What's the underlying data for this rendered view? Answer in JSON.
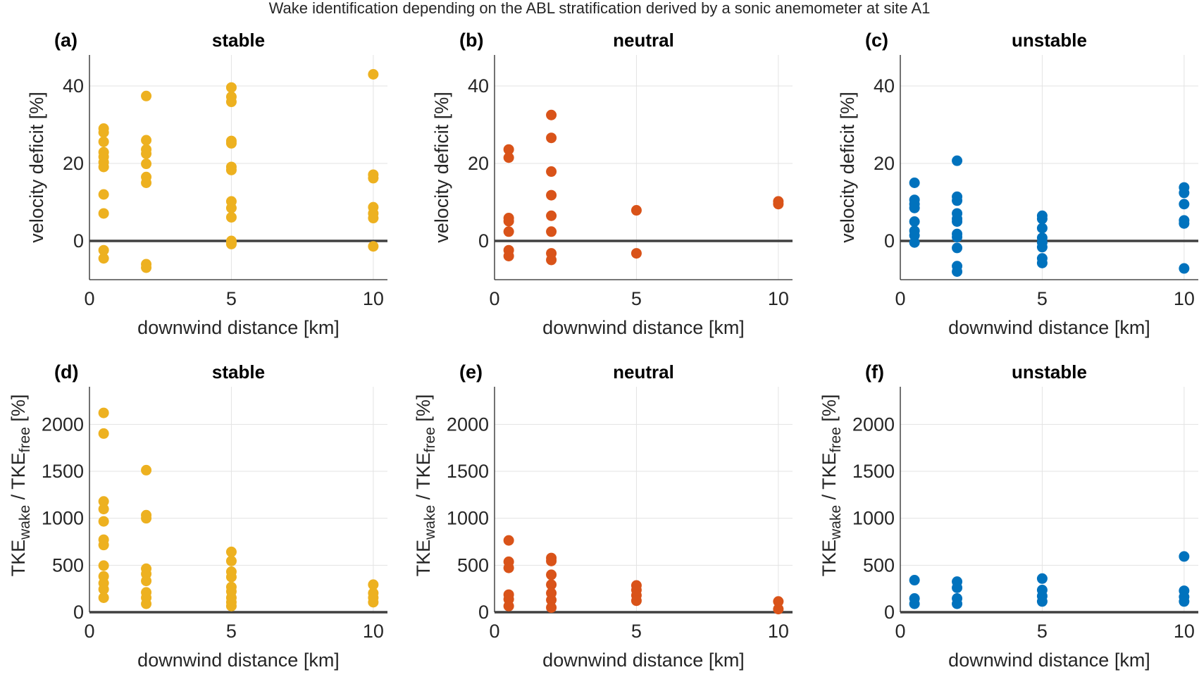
{
  "chart_data": {
    "type": "scatter",
    "title": "Wake identification depending on the ABL stratification derived by a sonic anemometer at site A1",
    "colors": {
      "stable": "#EDB120",
      "neutral": "#D95319",
      "unstable": "#0072BD"
    },
    "panels": [
      {
        "letter": "(a)",
        "subtitle": "stable",
        "color": "#EDB120",
        "xlabel": "downwind distance [km]",
        "ylabel": "velocity deficit [%]",
        "ylabel_type": "vd",
        "xlim": [
          0,
          10.5
        ],
        "ylim": [
          -10,
          48
        ],
        "xticks": [
          "0",
          "5",
          "10"
        ],
        "yticks": [
          "0",
          "20",
          "40"
        ],
        "grid": true,
        "points": [
          [
            0.5,
            29
          ],
          [
            0.5,
            28
          ],
          [
            0.5,
            25.6
          ],
          [
            0.5,
            22.9
          ],
          [
            0.5,
            21.7
          ],
          [
            0.5,
            20.3
          ],
          [
            0.5,
            19.1
          ],
          [
            0.5,
            12
          ],
          [
            0.5,
            7.1
          ],
          [
            0.5,
            -2.4
          ],
          [
            0.5,
            -4.5
          ],
          [
            2,
            37.4
          ],
          [
            2,
            26
          ],
          [
            2,
            23.6
          ],
          [
            2,
            22.5
          ],
          [
            2,
            19.9
          ],
          [
            2,
            16.5
          ],
          [
            2,
            15
          ],
          [
            2,
            -6
          ],
          [
            2,
            -6.9
          ],
          [
            5,
            39.6
          ],
          [
            5,
            37.2
          ],
          [
            5,
            35.9
          ],
          [
            5,
            25.8
          ],
          [
            5,
            25.2
          ],
          [
            5,
            19.1
          ],
          [
            5,
            18.3
          ],
          [
            5,
            10.2
          ],
          [
            5,
            8.5
          ],
          [
            5,
            6.1
          ],
          [
            5,
            0
          ],
          [
            5,
            -0.4
          ],
          [
            5,
            -0.8
          ],
          [
            10,
            43
          ],
          [
            10,
            17.1
          ],
          [
            10,
            16.2
          ],
          [
            10,
            8.7
          ],
          [
            10,
            7.1
          ],
          [
            10,
            5.9
          ],
          [
            10,
            -1.4
          ]
        ]
      },
      {
        "letter": "(b)",
        "subtitle": "neutral",
        "color": "#D95319",
        "xlabel": "downwind distance [km]",
        "ylabel": "velocity deficit [%]",
        "ylabel_type": "vd",
        "xlim": [
          0,
          10.5
        ],
        "ylim": [
          -10,
          48
        ],
        "xticks": [
          "0",
          "5",
          "10"
        ],
        "yticks": [
          "0",
          "20",
          "40"
        ],
        "grid": true,
        "points": [
          [
            0.5,
            23.6
          ],
          [
            0.5,
            21.5
          ],
          [
            0.5,
            5.9
          ],
          [
            0.5,
            5.1
          ],
          [
            0.5,
            2.4
          ],
          [
            0.5,
            -2.4
          ],
          [
            0.5,
            -3.9
          ],
          [
            2,
            32.5
          ],
          [
            2,
            26.6
          ],
          [
            2,
            17.9
          ],
          [
            2,
            11.8
          ],
          [
            2,
            6.5
          ],
          [
            2,
            2.4
          ],
          [
            2,
            -3.2
          ],
          [
            2,
            -4.9
          ],
          [
            5,
            7.9
          ],
          [
            5,
            -3.2
          ],
          [
            10,
            10.2
          ],
          [
            10,
            9.5
          ]
        ]
      },
      {
        "letter": "(c)",
        "subtitle": "unstable",
        "color": "#0072BD",
        "xlabel": "downwind distance [km]",
        "ylabel": "velocity deficit [%]",
        "ylabel_type": "vd",
        "xlim": [
          0,
          10.5
        ],
        "ylim": [
          -10,
          48
        ],
        "xticks": [
          "0",
          "5",
          "10"
        ],
        "yticks": [
          "0",
          "20",
          "40"
        ],
        "grid": true,
        "points": [
          [
            0.5,
            15
          ],
          [
            0.5,
            10.6
          ],
          [
            0.5,
            9.5
          ],
          [
            0.5,
            8.5
          ],
          [
            0.5,
            5
          ],
          [
            0.5,
            2.6
          ],
          [
            0.5,
            1.4
          ],
          [
            0.5,
            -0.4
          ],
          [
            2,
            20.7
          ],
          [
            2,
            11.4
          ],
          [
            2,
            10.4
          ],
          [
            2,
            7.1
          ],
          [
            2,
            5.7
          ],
          [
            2,
            5
          ],
          [
            2,
            1.8
          ],
          [
            2,
            1
          ],
          [
            2,
            -1.8
          ],
          [
            2,
            -6.5
          ],
          [
            2,
            -7.9
          ],
          [
            5,
            6.5
          ],
          [
            5,
            5.7
          ],
          [
            5,
            3.3
          ],
          [
            5,
            0.8
          ],
          [
            5,
            -0.4
          ],
          [
            5,
            -1.6
          ],
          [
            5,
            -4.5
          ],
          [
            5,
            -5.7
          ],
          [
            10,
            13.8
          ],
          [
            10,
            12.4
          ],
          [
            10,
            9.5
          ],
          [
            10,
            5.3
          ],
          [
            10,
            4.5
          ],
          [
            10,
            -7.1
          ]
        ]
      },
      {
        "letter": "(d)",
        "subtitle": "stable",
        "color": "#EDB120",
        "xlabel": "downwind distance [km]",
        "ylabel": "TKE_wake / TKE_free [%]",
        "ylabel_type": "tke",
        "xlim": [
          0,
          10.5
        ],
        "ylim": [
          0,
          2400
        ],
        "xticks": [
          "0",
          "5",
          "10"
        ],
        "yticks": [
          "0",
          "500",
          "1000",
          "1500",
          "2000"
        ],
        "grid": true,
        "points": [
          [
            0.5,
            2122
          ],
          [
            0.5,
            1902
          ],
          [
            0.5,
            1179
          ],
          [
            0.5,
            1098
          ],
          [
            0.5,
            967
          ],
          [
            0.5,
            772
          ],
          [
            0.5,
            715
          ],
          [
            0.5,
            496
          ],
          [
            0.5,
            382
          ],
          [
            0.5,
            309
          ],
          [
            0.5,
            244
          ],
          [
            0.5,
            154
          ],
          [
            2,
            1512
          ],
          [
            2,
            1033
          ],
          [
            2,
            1000
          ],
          [
            2,
            463
          ],
          [
            2,
            407
          ],
          [
            2,
            333
          ],
          [
            2,
            211
          ],
          [
            2,
            154
          ],
          [
            2,
            89
          ],
          [
            5,
            642
          ],
          [
            5,
            545
          ],
          [
            5,
            431
          ],
          [
            5,
            374
          ],
          [
            5,
            268
          ],
          [
            5,
            220
          ],
          [
            5,
            154
          ],
          [
            5,
            106
          ],
          [
            5,
            65
          ],
          [
            10,
            293
          ],
          [
            10,
            203
          ],
          [
            10,
            154
          ],
          [
            10,
            106
          ]
        ]
      },
      {
        "letter": "(e)",
        "subtitle": "neutral",
        "color": "#D95319",
        "xlabel": "downwind distance [km]",
        "ylabel": "TKE_wake / TKE_free [%]",
        "ylabel_type": "tke",
        "xlim": [
          0,
          10.5
        ],
        "ylim": [
          0,
          2400
        ],
        "xticks": [
          "0",
          "5",
          "10"
        ],
        "yticks": [
          "0",
          "500",
          "1000",
          "1500",
          "2000"
        ],
        "grid": true,
        "points": [
          [
            0.5,
            764
          ],
          [
            0.5,
            537
          ],
          [
            0.5,
            472
          ],
          [
            0.5,
            187
          ],
          [
            0.5,
            138
          ],
          [
            0.5,
            65
          ],
          [
            2,
            577
          ],
          [
            2,
            545
          ],
          [
            2,
            398
          ],
          [
            2,
            293
          ],
          [
            2,
            203
          ],
          [
            2,
            130
          ],
          [
            2,
            49
          ],
          [
            5,
            285
          ],
          [
            5,
            236
          ],
          [
            5,
            179
          ],
          [
            5,
            122
          ],
          [
            10,
            114
          ],
          [
            10,
            33
          ]
        ]
      },
      {
        "letter": "(f)",
        "subtitle": "unstable",
        "color": "#0072BD",
        "xlabel": "downwind distance [km]",
        "ylabel": "TKE_wake / TKE_free [%]",
        "ylabel_type": "tke",
        "xlim": [
          0,
          10.5
        ],
        "ylim": [
          0,
          2400
        ],
        "xticks": [
          "0",
          "5",
          "10"
        ],
        "yticks": [
          "0",
          "500",
          "1000",
          "1500",
          "2000"
        ],
        "grid": true,
        "points": [
          [
            0.5,
            341
          ],
          [
            0.5,
            146
          ],
          [
            0.5,
            89
          ],
          [
            2,
            325
          ],
          [
            2,
            260
          ],
          [
            2,
            146
          ],
          [
            2,
            89
          ],
          [
            5,
            358
          ],
          [
            5,
            236
          ],
          [
            5,
            171
          ],
          [
            5,
            114
          ],
          [
            10,
            593
          ],
          [
            10,
            228
          ],
          [
            10,
            163
          ],
          [
            10,
            114
          ]
        ]
      }
    ],
    "tke_label_parts": {
      "base1": "TKE",
      "sub1": "wake",
      "mid": " / TKE",
      "sub2": "free",
      "unit": " [%]"
    }
  }
}
